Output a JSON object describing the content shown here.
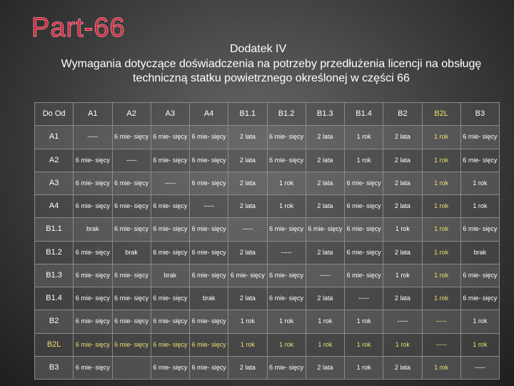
{
  "header": {
    "logo": "Part-66",
    "title": "Dodatek IV",
    "subtitle": "Wymagania dotyczące doświadczenia na potrzeby przedłużenia licencji na obsługę techniczną statku powietrznego określonej w części 66"
  },
  "table": {
    "columns": [
      "Do Od",
      "A1",
      "A2",
      "A3",
      "A4",
      "B1.1",
      "B1.2",
      "B1.3",
      "B1.4",
      "B2",
      "B2L",
      "B3"
    ],
    "rows": [
      [
        "A1",
        "-----",
        "6 mie- sięcy",
        "6 mie- sięcy",
        "6 mie- sięcy",
        "2 lata",
        "6 mie- sięcy",
        "2 lata",
        "1 rok",
        "2 lata",
        "1 rok",
        "6 mie- sięcy"
      ],
      [
        "A2",
        "6 mie- sięcy",
        "-----",
        "6 mie- sięcy",
        "6 mie- sięcy",
        "2 lata",
        "6 mie- sięcy",
        "2 lata",
        "1 rok",
        "2 lata",
        "1 rok",
        "6 mie- sięcy"
      ],
      [
        "A3",
        "6 mie- sięcy",
        "6 mie- sięcy",
        "-----",
        "6 mie- sięcy",
        "2 lata",
        "1 rok",
        "2 lata",
        "6 mie- sięcy",
        "2 lata",
        "1 rok",
        "1 rok"
      ],
      [
        "A4",
        "6 mie- sięcy",
        "6 mie- sięcy",
        "6 mie- sięcy",
        "-----",
        "2 lata",
        "1 rok",
        "2 lata",
        "6 mie- sięcy",
        "2 lata",
        "1 rok",
        "1 rok"
      ],
      [
        "B1.1",
        "brak",
        "6 mie- sięcy",
        "6 mie- sięcy",
        "6 mie- sięcy",
        "-----",
        "6 mie- sięcy",
        "6 mie- sięcy",
        "6 mie- sięcy",
        "1 rok",
        "1 rok",
        "6 mie- sięcy"
      ],
      [
        "B1.2",
        "6 mie- sięcy",
        "brak",
        "6 mie- sięcy",
        "6 mie- sięcy",
        "2 lata",
        "-----",
        "2 lata",
        "6 mie- sięcy",
        "2 lata",
        "1 rok",
        "brak"
      ],
      [
        "B1.3",
        "6 mie- sięcy",
        "6 mie- sięcy",
        "brak",
        "6 mie- sięcy",
        "6 mie- sięcy",
        "6 mie- sięcy",
        "-----",
        "6 mie- sięcy",
        "1 rok",
        "1 rok",
        "6 mie- sięcy"
      ],
      [
        "B1.4",
        "6 mie- sięcy",
        "6 mie- sięcy",
        "6 mie- sięcy",
        "brak",
        "2 lata",
        "6 mie- sięcy",
        "2 lata",
        "-----",
        "2 lata",
        "1 rok",
        "6 mie- sięcy"
      ],
      [
        "B2",
        "6 mie- sięcy",
        "6 mie- sięcy",
        "6 mie- sięcy",
        "6 mie- sięcy",
        "1 rok",
        "1 rok",
        "1 rok",
        "1 rok",
        "-----",
        "-----",
        "1 rok"
      ],
      [
        "B2L",
        "6 mie- sięcy",
        "6 mie- sięcy",
        "6 mie- sięcy",
        "6 mie- sięcy",
        "1 rok",
        "1 rok",
        "1 rok",
        "1 rok",
        "1 rok",
        "-----",
        "1 rok"
      ],
      [
        "B3",
        "6 mie- sięcy",
        null,
        "6 mie- sięcy",
        "6 mie- sięcy",
        "2 lata",
        "6 mie- sięcy",
        "2 lata",
        "1 rok",
        "2 lata",
        "1 rok",
        "-----"
      ]
    ]
  }
}
